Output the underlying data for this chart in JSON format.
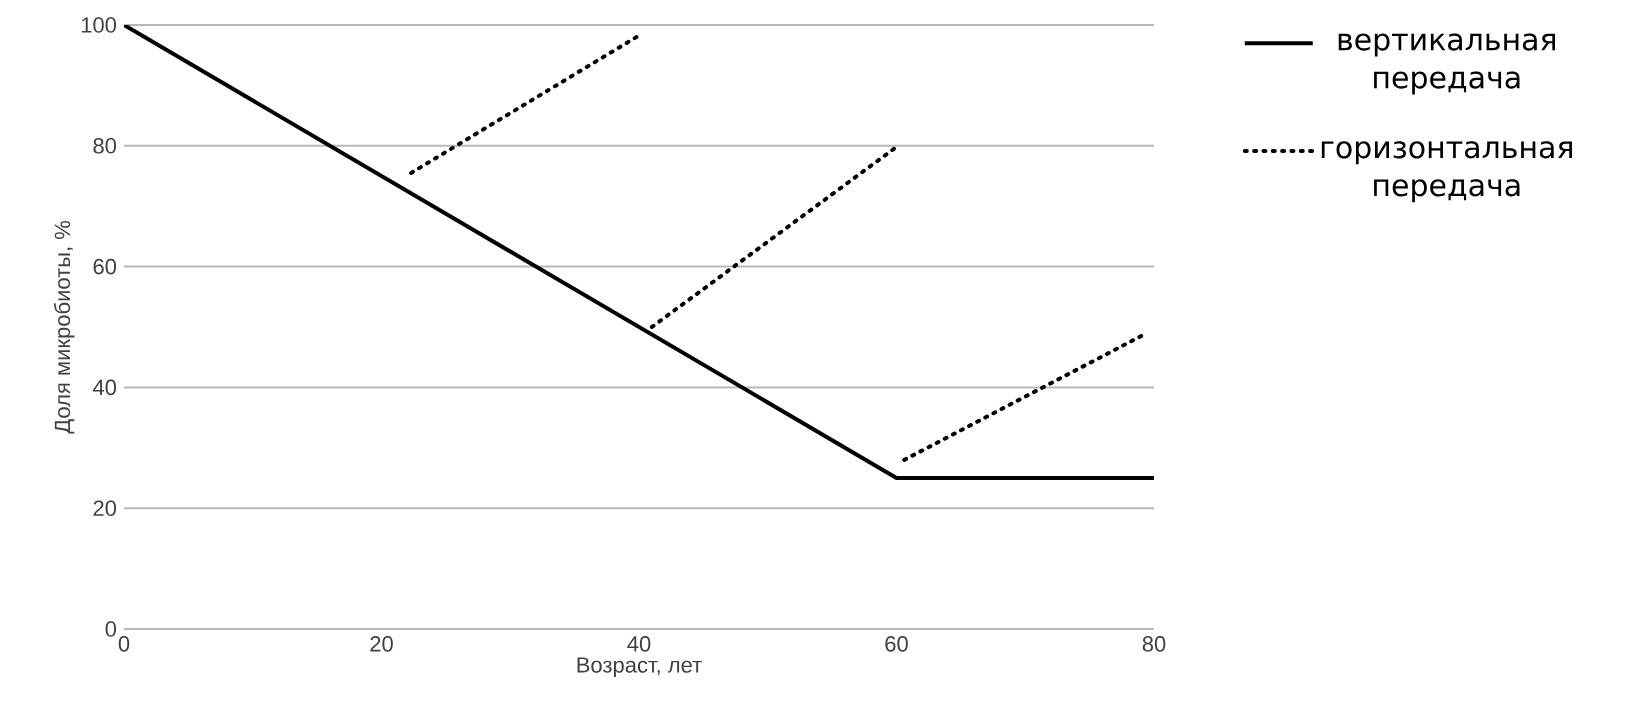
{
  "chart_data": {
    "type": "line",
    "xlabel": "Возраст, лет",
    "ylabel": "Доля микробиоты, %",
    "xlim": [
      0,
      80
    ],
    "ylim": [
      0,
      100
    ],
    "xticks": [
      0,
      20,
      40,
      60,
      80
    ],
    "yticks": [
      0,
      20,
      40,
      60,
      80,
      100
    ],
    "grid": "y",
    "legend": "right",
    "series": [
      {
        "name": "вертикальная передача",
        "color": "#000000",
        "line_style": "solid",
        "x": [
          0,
          60,
          80
        ],
        "values": [
          100,
          25,
          25
        ]
      },
      {
        "name": "горизонтальная передача",
        "color": "#000000",
        "line_style": "dotted",
        "x": [
          22.3,
          39.8
        ],
        "values": [
          75.5,
          98
        ]
      },
      {
        "color": "#000000",
        "line_style": "dotted",
        "x": [
          41,
          59.8
        ],
        "values": [
          50,
          79.5
        ]
      },
      {
        "color": "#000000",
        "line_style": "dotted",
        "x": [
          60.6,
          79
        ],
        "values": [
          28,
          48.5
        ]
      }
    ]
  }
}
